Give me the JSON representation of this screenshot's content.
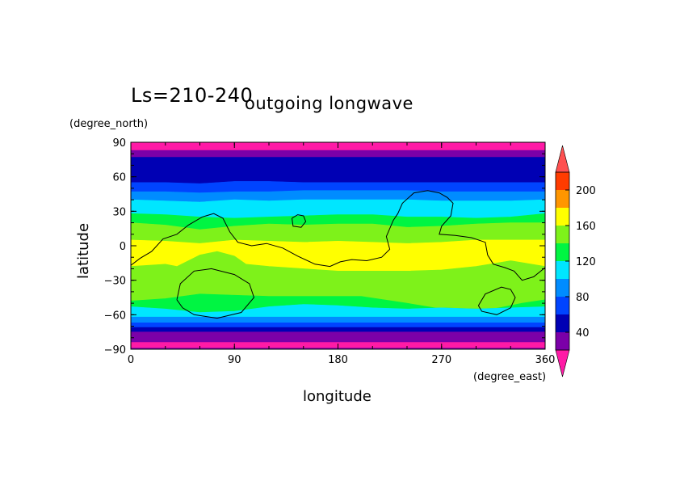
{
  "header": {
    "season_label": "Ls=210-240",
    "title": "outgoing longwave"
  },
  "colors": {
    "band_palette": [
      "#ff1aa6",
      "#7b00a8",
      "#0000b4",
      "#0044ff",
      "#008cff",
      "#00e6ff",
      "#00f542",
      "#7ef21a",
      "#ffff00",
      "#ff9600",
      "#ff3c00",
      "#ff5050"
    ],
    "contour": "#000000"
  },
  "chart_data": {
    "type": "heatmap",
    "title": "outgoing longwave",
    "xlabel": "longitude",
    "ylabel": "latitude",
    "x_unit": "(degree_east)",
    "y_unit": "(degree_north)",
    "xlim": [
      0,
      360
    ],
    "ylim": [
      -90,
      90
    ],
    "x_ticks": [
      "0",
      "90",
      "180",
      "270",
      "360"
    ],
    "y_ticks": [
      "-90",
      "-60",
      "-30",
      "0",
      "30",
      "60",
      "90"
    ],
    "colorbar": {
      "levels": [
        20,
        40,
        60,
        80,
        100,
        120,
        140,
        160,
        180,
        200,
        220
      ],
      "tick_labels": [
        "40",
        "80",
        "120",
        "160",
        "200"
      ],
      "colors": [
        "#7b00a8",
        "#0000b4",
        "#0044ff",
        "#008cff",
        "#00e6ff",
        "#00f542",
        "#7ef21a",
        "#ffff00",
        "#ff9600",
        "#ff3c00"
      ],
      "under_color": "#ff1aa6",
      "over_color": "#ff5050"
    },
    "x_samples": [
      0,
      30,
      60,
      90,
      120,
      150,
      180,
      210,
      240,
      270,
      300,
      330,
      360
    ],
    "boundaries": [
      {
        "level": 20,
        "lat": [
          83,
          83,
          83,
          83,
          83,
          83,
          83,
          83,
          83,
          83,
          83,
          83,
          83
        ]
      },
      {
        "level": 40,
        "lat": [
          77,
          77,
          77,
          77,
          77,
          77,
          77,
          77,
          77,
          77,
          77,
          77,
          77
        ]
      },
      {
        "level": 60,
        "lat": [
          55,
          55,
          54,
          56,
          56,
          55,
          55,
          55,
          55,
          55,
          55,
          55,
          55
        ]
      },
      {
        "level": 80,
        "lat": [
          47,
          47,
          46,
          47,
          47,
          48,
          48,
          48,
          48,
          47,
          47,
          47,
          47
        ]
      },
      {
        "level": 100,
        "lat": [
          40,
          39,
          38,
          40,
          39,
          40,
          40,
          40,
          40,
          39,
          39,
          39,
          40
        ]
      },
      {
        "level": 120,
        "lat": [
          28,
          27,
          25,
          24,
          25,
          26,
          27,
          27,
          25,
          25,
          24,
          25,
          28
        ]
      },
      {
        "level": 140,
        "lat": [
          20,
          18,
          14,
          17,
          19,
          18,
          19,
          19,
          16,
          17,
          19,
          20,
          20
        ]
      },
      {
        "level": 160,
        "lat": [
          5,
          4,
          2,
          5,
          4,
          3,
          4,
          3,
          2,
          3,
          5,
          5,
          5
        ]
      },
      {
        "level": 180,
        "lat": [
          -18,
          -16,
          -12,
          -16,
          -18,
          -20,
          -22,
          -22,
          -22,
          -21,
          -18,
          -13,
          -18
        ]
      },
      {
        "level": 160,
        "lat": [
          -48,
          -46,
          -42,
          -43,
          -44,
          -44,
          -44,
          -45,
          -46,
          -45,
          -44,
          -44,
          -45
        ]
      },
      {
        "level": 140,
        "lat": [
          -53,
          -55,
          -58,
          -57,
          -53,
          -51,
          -52,
          -54,
          -55,
          -54,
          -55,
          -54,
          -53
        ]
      },
      {
        "level": 120,
        "lat": [
          -62,
          -62,
          -62,
          -62,
          -62,
          -62,
          -62,
          -62,
          -62,
          -62,
          -62,
          -62,
          -62
        ]
      },
      {
        "level": 100,
        "lat": [
          -67,
          -67,
          -67,
          -67,
          -67,
          -67,
          -67,
          -67,
          -67,
          -67,
          -67,
          -67,
          -67
        ]
      },
      {
        "level": 80,
        "lat": [
          -71,
          -71,
          -71,
          -71,
          -71,
          -71,
          -71,
          -71,
          -71,
          -71,
          -71,
          -71,
          -71
        ]
      },
      {
        "level": 60,
        "lat": [
          -75,
          -75,
          -75,
          -75,
          -75,
          -75,
          -75,
          -75,
          -75,
          -75,
          -75,
          -75,
          -75
        ]
      },
      {
        "level": 40,
        "lat": [
          -84,
          -84,
          -84,
          -84,
          -84,
          -84,
          -84,
          -84,
          -84,
          -84,
          -84,
          -84,
          -84
        ]
      },
      {
        "level": 20,
        "lat": [
          -89,
          -89,
          -89,
          -89,
          -89,
          -89,
          -89,
          -89,
          -89,
          -89,
          -89,
          -89,
          -89
        ]
      }
    ],
    "band_colors_top_to_bottom": [
      "#ff1aa6",
      "#7b00a8",
      "#0000b4",
      "#0044ff",
      "#008cff",
      "#00e6ff",
      "#00f542",
      "#7ef21a",
      "#ffff00",
      "#7ef21a",
      "#00f542",
      "#00e6ff",
      "#008cff",
      "#0044ff",
      "#0000b4",
      "#7b00a8",
      "#ff1aa6",
      "#7b00a8"
    ],
    "bulges": [
      {
        "boundary": 8,
        "lon": [
          40,
          60,
          75,
          90,
          100
        ],
        "lat": [
          -18,
          -8,
          -5,
          -9,
          -16
        ]
      },
      {
        "boundary": 9,
        "lon": [
          200,
          240,
          270,
          290,
          320,
          340,
          360
        ],
        "lat": [
          -44,
          -50,
          -55,
          -58,
          -54,
          -50,
          -47
        ]
      }
    ],
    "contours": [
      [
        [
          0,
          -17
        ],
        [
          8,
          -11
        ],
        [
          18,
          -5
        ],
        [
          28,
          6
        ],
        [
          40,
          10
        ],
        [
          50,
          18
        ],
        [
          62,
          25
        ],
        [
          72,
          28
        ],
        [
          80,
          24
        ],
        [
          86,
          12
        ],
        [
          93,
          3
        ],
        [
          105,
          0
        ],
        [
          118,
          2
        ],
        [
          132,
          -2
        ],
        [
          145,
          -9
        ],
        [
          160,
          -16
        ],
        [
          173,
          -18
        ],
        [
          182,
          -14
        ],
        [
          192,
          -12
        ],
        [
          205,
          -13
        ],
        [
          218,
          -10
        ],
        [
          225,
          -3
        ],
        [
          222,
          8
        ],
        [
          228,
          22
        ],
        [
          232,
          28
        ],
        [
          236,
          37
        ],
        [
          246,
          46
        ],
        [
          258,
          48
        ],
        [
          268,
          46
        ],
        [
          275,
          42
        ],
        [
          280,
          37
        ],
        [
          278,
          26
        ],
        [
          270,
          17
        ],
        [
          268,
          10
        ],
        [
          282,
          9
        ],
        [
          296,
          7
        ],
        [
          308,
          3
        ],
        [
          310,
          -8
        ],
        [
          315,
          -16
        ],
        [
          325,
          -19
        ],
        [
          333,
          -22
        ],
        [
          340,
          -30
        ],
        [
          350,
          -27
        ],
        [
          360,
          -19
        ]
      ],
      [
        [
          140,
          24
        ],
        [
          145,
          27
        ],
        [
          150,
          26
        ],
        [
          152,
          21
        ],
        [
          148,
          16
        ],
        [
          141,
          17
        ],
        [
          140,
          24
        ]
      ],
      [
        [
          40,
          -47
        ],
        [
          43,
          -33
        ],
        [
          55,
          -22
        ],
        [
          70,
          -20
        ],
        [
          90,
          -25
        ],
        [
          103,
          -33
        ],
        [
          107,
          -45
        ],
        [
          96,
          -58
        ],
        [
          75,
          -63
        ],
        [
          55,
          -60
        ],
        [
          45,
          -54
        ],
        [
          40,
          -47
        ]
      ],
      [
        [
          302,
          -52
        ],
        [
          308,
          -42
        ],
        [
          322,
          -36
        ],
        [
          330,
          -38
        ],
        [
          334,
          -45
        ],
        [
          330,
          -54
        ],
        [
          318,
          -60
        ],
        [
          305,
          -57
        ],
        [
          302,
          -52
        ]
      ]
    ]
  }
}
